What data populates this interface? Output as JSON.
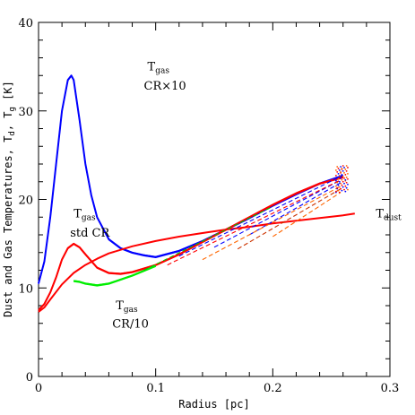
{
  "chart_data": {
    "type": "line",
    "xlabel": "Radius [pc]",
    "ylabel": "Dust and Gas Temperatures, T_d, T_g [K]",
    "ylabel_parts": {
      "a": "Dust and Gas Temperatures, T",
      "b": "d",
      "c": ", T",
      "d": "g",
      "e": " [K]"
    },
    "xlim": [
      0,
      0.3
    ],
    "ylim": [
      0,
      40
    ],
    "xticks": [
      "0",
      "0.1",
      "0.2",
      "0.3"
    ],
    "yticks": [
      "0",
      "10",
      "20",
      "30",
      "40"
    ],
    "grid": false,
    "series": [
      {
        "id": "gas-cr10",
        "color": "#0000ff",
        "x": [
          0.0,
          0.005,
          0.01,
          0.015,
          0.02,
          0.025,
          0.028,
          0.03,
          0.035,
          0.04,
          0.045,
          0.05,
          0.06,
          0.07,
          0.08,
          0.09,
          0.1,
          0.12,
          0.14,
          0.16,
          0.18,
          0.2,
          0.22,
          0.24,
          0.26
        ],
        "y": [
          10.5,
          13,
          18,
          24,
          30,
          33.5,
          34,
          33.5,
          29,
          24,
          20.5,
          18,
          15.5,
          14.5,
          14,
          13.7,
          13.5,
          14.2,
          15.3,
          16.6,
          17.9,
          19.3,
          20.6,
          21.8,
          22.7
        ]
      },
      {
        "id": "gas-std",
        "color": "#ff0000",
        "x": [
          0.0,
          0.005,
          0.01,
          0.015,
          0.02,
          0.025,
          0.03,
          0.035,
          0.04,
          0.05,
          0.06,
          0.07,
          0.08,
          0.1,
          0.12,
          0.14,
          0.16,
          0.18,
          0.2,
          0.22,
          0.24,
          0.26
        ],
        "y": [
          7.5,
          8.2,
          9.5,
          11.2,
          13.2,
          14.5,
          15,
          14.6,
          13.8,
          12.3,
          11.7,
          11.6,
          11.8,
          12.6,
          13.8,
          15.2,
          16.6,
          18,
          19.4,
          20.7,
          21.8,
          22.5
        ]
      },
      {
        "id": "gas-cr-over-10",
        "color": "#00ee00",
        "x": [
          0.03,
          0.035,
          0.04,
          0.05,
          0.06,
          0.08,
          0.1
        ],
        "y": [
          10.8,
          10.7,
          10.5,
          10.3,
          10.5,
          11.4,
          12.5
        ]
      },
      {
        "id": "dust",
        "color": "#ff0000",
        "x": [
          0.0,
          0.005,
          0.01,
          0.02,
          0.03,
          0.04,
          0.05,
          0.06,
          0.08,
          0.1,
          0.12,
          0.14,
          0.16,
          0.18,
          0.2,
          0.22,
          0.24,
          0.26,
          0.27
        ],
        "y": [
          7.3,
          7.8,
          8.7,
          10.4,
          11.7,
          12.6,
          13.3,
          13.9,
          14.7,
          15.3,
          15.8,
          16.2,
          16.6,
          16.9,
          17.3,
          17.6,
          17.9,
          18.2,
          18.4
        ]
      }
    ],
    "annotations": [
      {
        "id": "t-gas-cr10",
        "main": "T",
        "sub": "gas",
        "line2": "CR×10",
        "x": 0.093,
        "y": 34.6,
        "y2": 32.6
      },
      {
        "id": "t-gas-std",
        "main": "T",
        "sub": "gas",
        "line2": "std CR",
        "x": 0.03,
        "y": 18,
        "y2": 16
      },
      {
        "id": "t-gas-cr-over-10",
        "main": "T",
        "sub": "gas",
        "line2": "CR/10",
        "x": 0.066,
        "y": 7.6,
        "y2": 5.7
      },
      {
        "id": "t-dust",
        "main": "T",
        "sub": "dust",
        "line2": "",
        "x": 0.288,
        "y": 18.0,
        "y2": 18.0
      }
    ]
  }
}
